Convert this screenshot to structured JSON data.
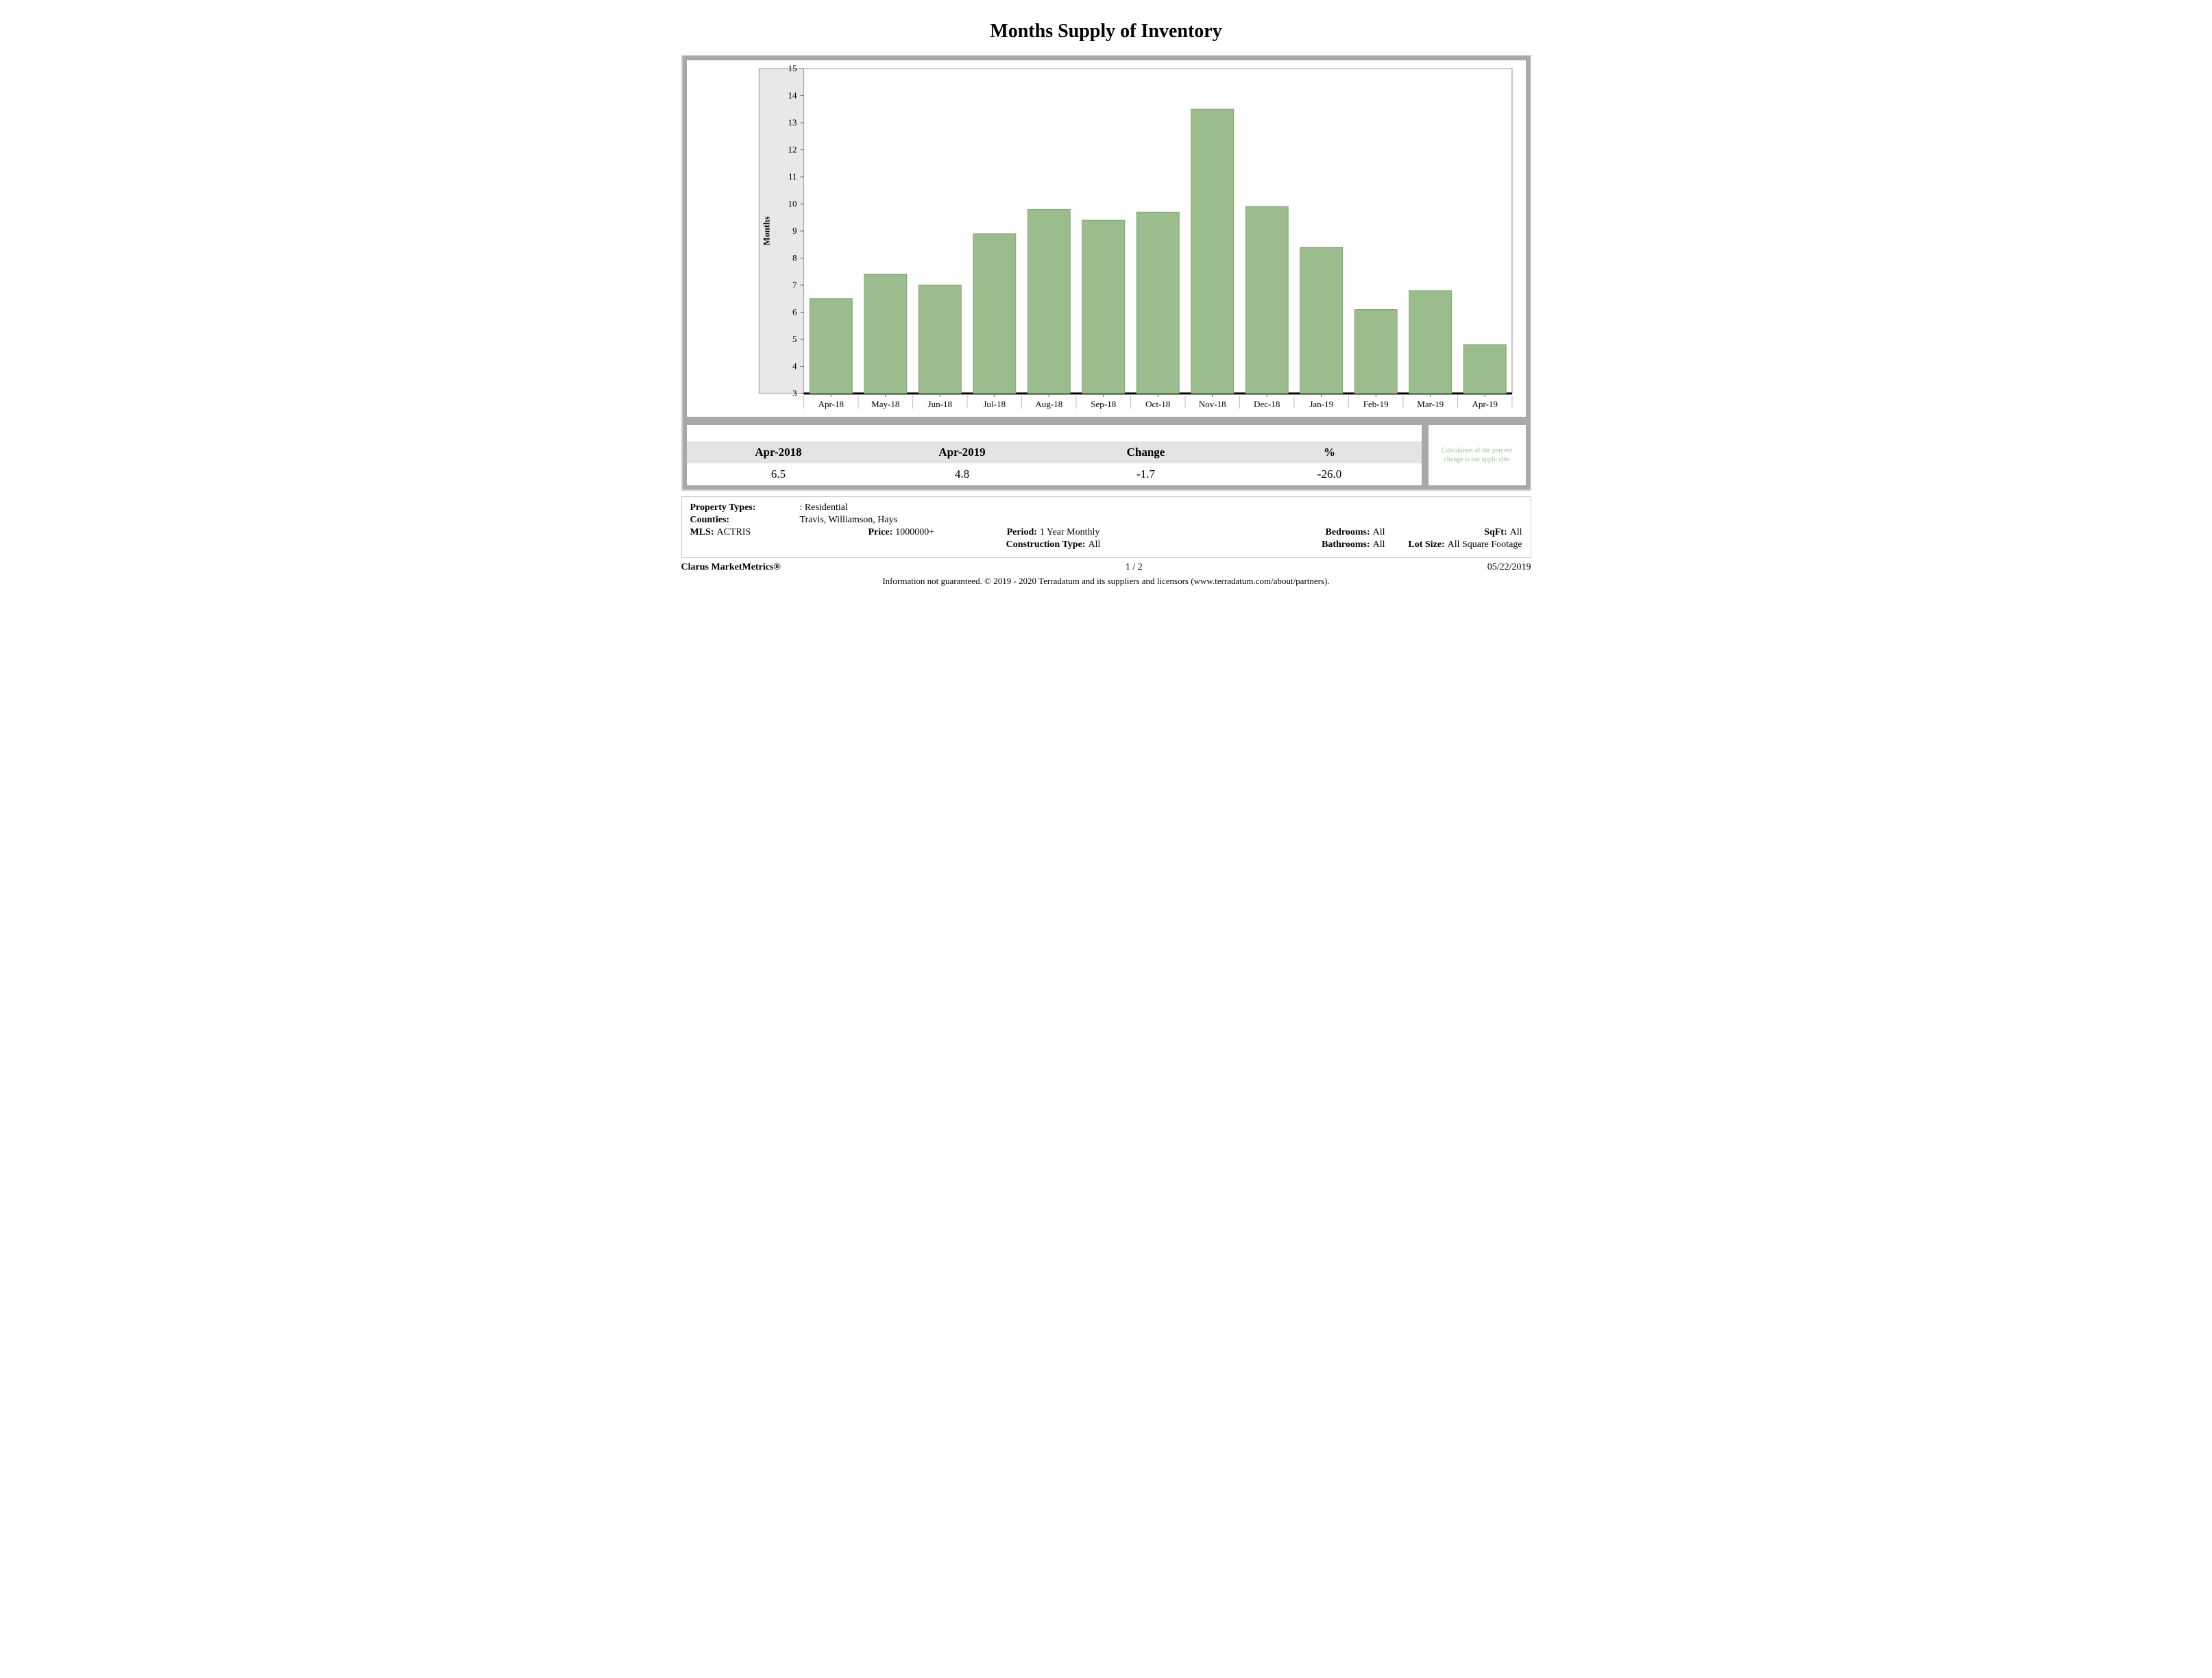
{
  "title": "Months Supply of Inventory",
  "chart": {
    "type": "bar",
    "categories": [
      "Apr-18",
      "May-18",
      "Jun-18",
      "Jul-18",
      "Aug-18",
      "Sep-18",
      "Oct-18",
      "Nov-18",
      "Dec-18",
      "Jan-19",
      "Feb-19",
      "Mar-19",
      "Apr-19"
    ],
    "values": [
      6.5,
      7.4,
      7.0,
      8.9,
      9.8,
      9.4,
      9.7,
      13.5,
      9.9,
      8.4,
      6.1,
      6.8,
      4.8
    ],
    "bar_color": "#9bbd8e",
    "bar_border_color": "#7fa673",
    "background_color": "#ffffff",
    "plot_left_fill": "#e8e8e8",
    "axis_color": "#000000",
    "tick_color": "#666666",
    "divider_color": "#bfbfbf",
    "y_title": "Months",
    "ylim": [
      3,
      15
    ],
    "ytick_step": 1,
    "tick_fontsize": 13,
    "y_title_fontsize": 13,
    "bar_width_ratio": 0.78
  },
  "summary": {
    "headers": [
      "Apr-2018",
      "Apr-2019",
      "Change",
      "%"
    ],
    "values": [
      "6.5",
      "4.8",
      "-1.7",
      "-26.0"
    ],
    "note": "Calculation of the percent change is not applicable"
  },
  "meta": {
    "property_types_label": "Property Types:",
    "property_types_value": ": Residential",
    "counties_label": "Counties:",
    "counties_value": "Travis, Williamson, Hays",
    "mls_label": "MLS:",
    "mls_value": "ACTRIS",
    "price_label": "Price:",
    "price_value": "1000000+",
    "period_label": "Period:",
    "period_value": "1 Year Monthly",
    "construction_label": "Construction Type:",
    "construction_value": "All",
    "bedrooms_label": "Bedrooms:",
    "bedrooms_value": "All",
    "bathrooms_label": "Bathrooms:",
    "bathrooms_value": "All",
    "sqft_label": "SqFt:",
    "sqft_value": "All",
    "lotsize_label": "Lot Size:",
    "lotsize_value": "All Square Footage"
  },
  "footer": {
    "brand": "Clarus MarketMetrics®",
    "page": "1 / 2",
    "date": "05/22/2019",
    "disclaimer": "Information not guaranteed. © 2019 - 2020 Terradatum and its suppliers and licensors (www.terradatum.com/about/partners)."
  }
}
